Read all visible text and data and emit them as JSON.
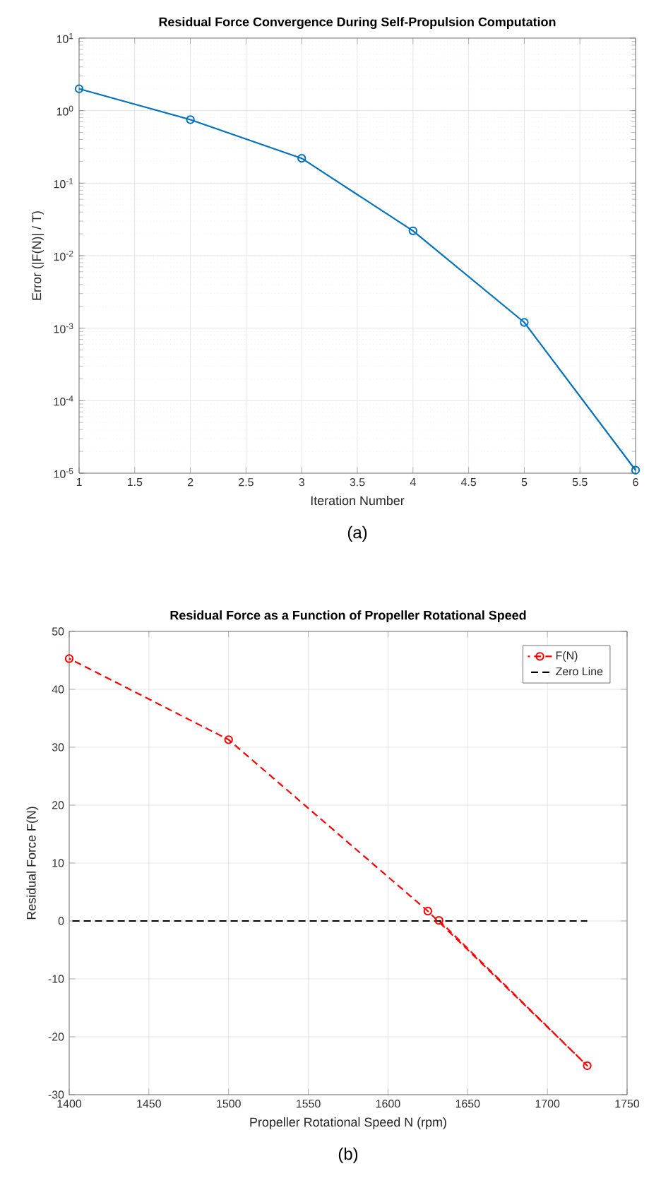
{
  "chart_data": [
    {
      "type": "line",
      "title": "Residual Force Convergence During Self-Propulsion Computation",
      "xlabel": "Iteration Number",
      "ylabel": "Error (|F(N)| / T)",
      "annotations": [
        "(a)"
      ],
      "log": "y",
      "grid": true,
      "marker": "circle",
      "line_style": "solid",
      "x": [
        1,
        2,
        3,
        4,
        5,
        6
      ],
      "series": [
        {
          "color": "#0072bd",
          "values": [
            2.0,
            0.75,
            0.22,
            0.022,
            0.0012,
            1.1e-05
          ]
        }
      ],
      "xlim": [
        1,
        6
      ],
      "xticks": [
        1,
        1.5,
        2,
        2.5,
        3,
        3.5,
        4,
        4.5,
        5,
        5.5,
        6
      ],
      "ylim": [
        1e-05,
        10
      ],
      "yticks": [
        {
          "value": 1e-05,
          "label": "10$^{-5}$"
        },
        {
          "value": 0.0001,
          "label": "10$^{-4}$"
        },
        {
          "value": 0.001,
          "label": "10$^{-3}$"
        },
        {
          "value": 0.01,
          "label": "10$^{-2}$"
        },
        {
          "value": 0.1,
          "label": "10$^{-1}$"
        },
        {
          "value": 1,
          "label": "10$^{0}$"
        },
        {
          "value": 10,
          "label": "10$^{1}$"
        }
      ]
    },
    {
      "type": "line",
      "title": "Residual Force as a Function of Propeller Rotational Speed",
      "xlabel": "Propeller Rotational Speed N (rpm)",
      "ylabel": "Residual Force F(N)",
      "annotations": [
        "(b)"
      ],
      "grid": true,
      "legend": "top right",
      "series": [
        {
          "name": "F(N)",
          "color": "#ff0000",
          "marker": "circle",
          "line_style": "dashed",
          "x": [
            1400,
            1500,
            1625,
            1725,
            1632
          ],
          "values": [
            45.3,
            31.3,
            1.7,
            -25,
            0.1
          ]
        },
        {
          "name": "Zero Line",
          "color": "#000000",
          "marker": "none",
          "line_style": "dashed",
          "x": [
            1400,
            1725
          ],
          "values": [
            0,
            0
          ]
        }
      ],
      "xlim": [
        1400,
        1750
      ],
      "xticks": [
        1400,
        1450,
        1500,
        1550,
        1600,
        1650,
        1700,
        1750
      ],
      "ylim": [
        -30,
        50
      ],
      "yticks": [
        -30,
        -20,
        -10,
        0,
        10,
        20,
        30,
        40,
        50
      ]
    }
  ]
}
